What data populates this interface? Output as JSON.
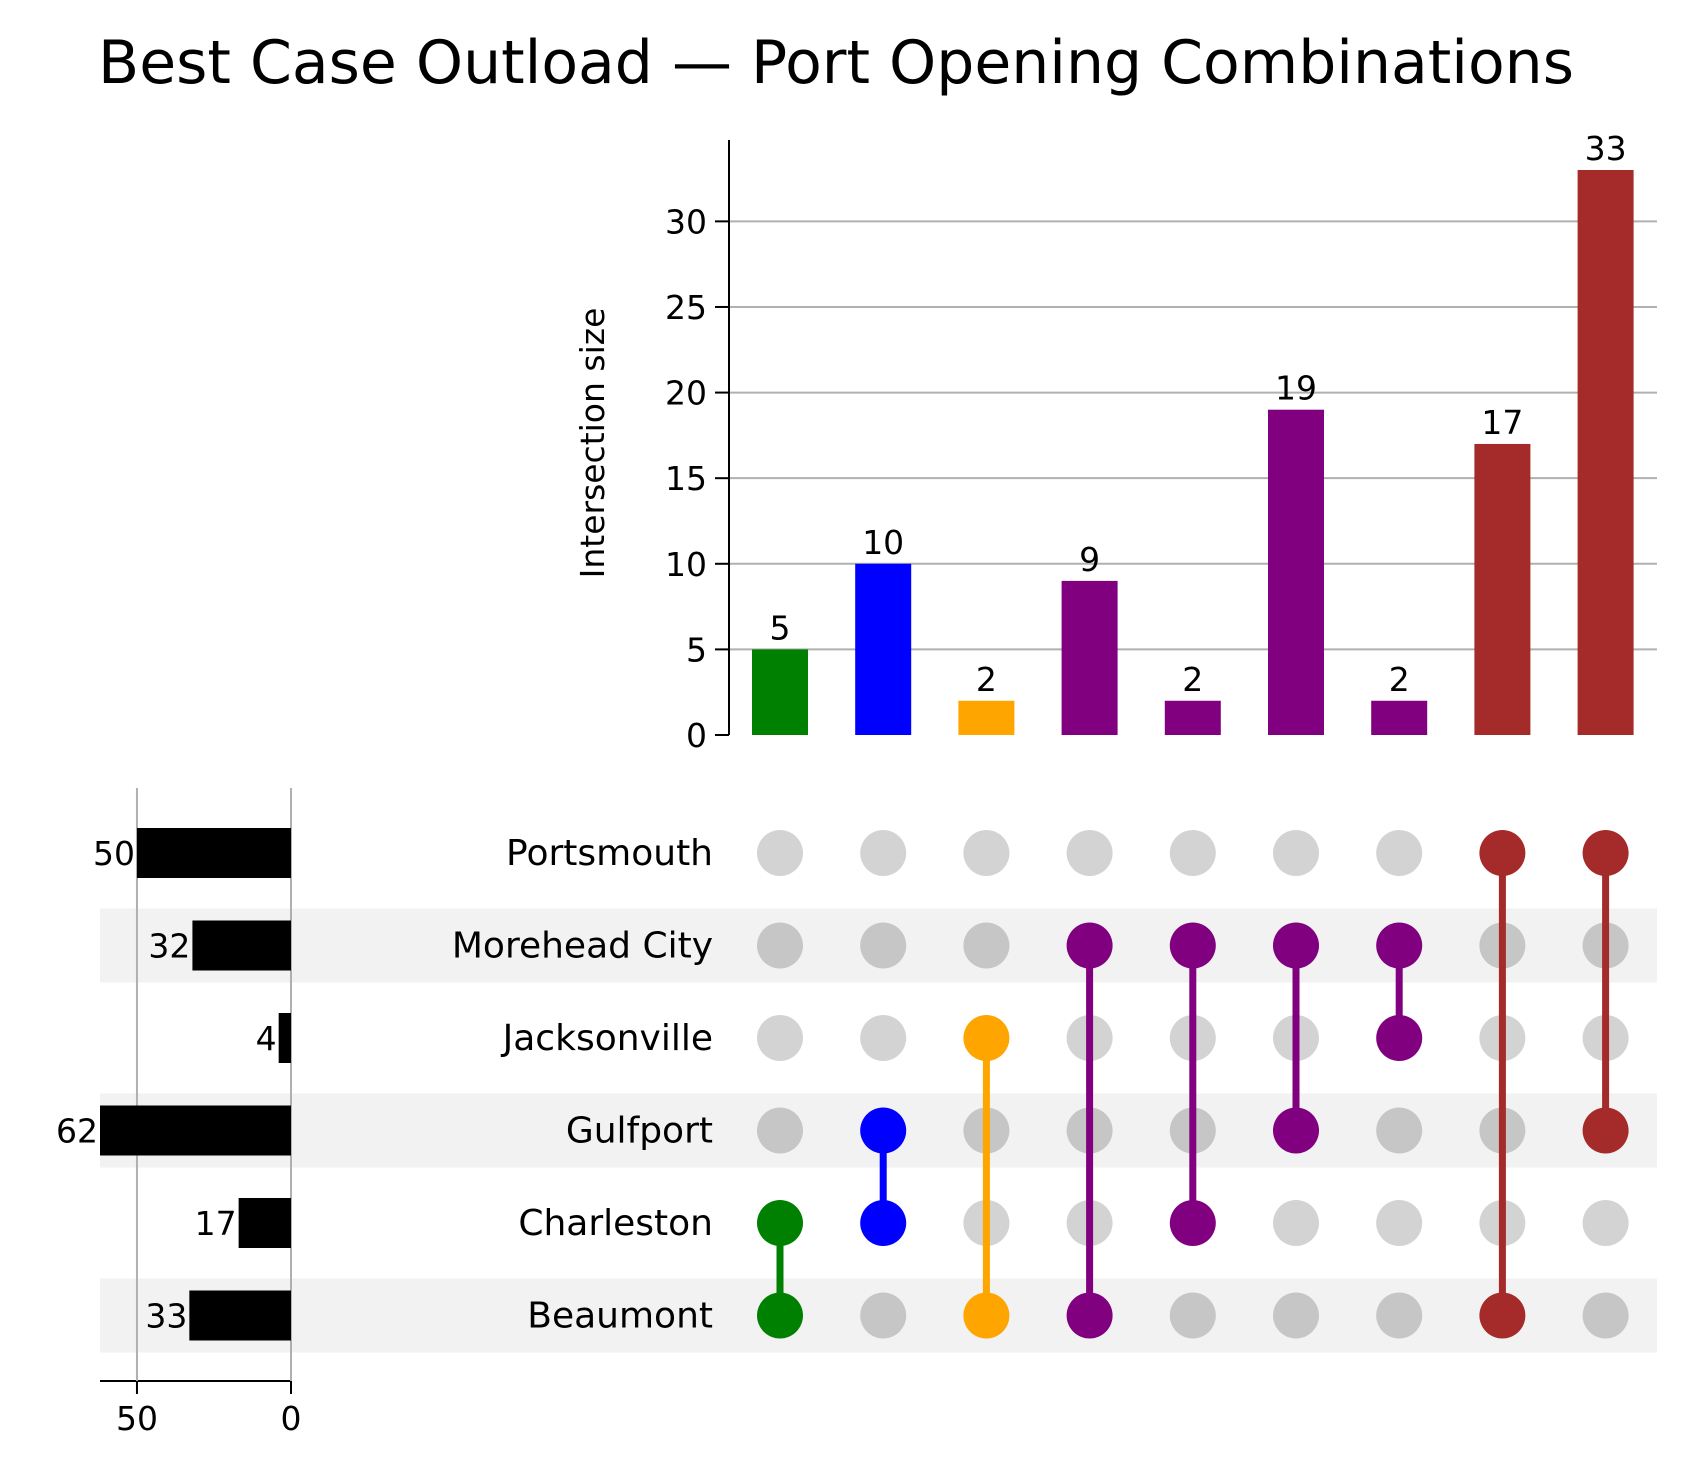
{
  "chart_data": {
    "type": "bar",
    "title": "Best Case Outload — Port Opening Combinations",
    "ylabel": "Intersection size",
    "ylim": [
      0,
      34.6
    ],
    "yticks": [
      0,
      5,
      10,
      15,
      20,
      25,
      30
    ],
    "grid": true,
    "sets": [
      "Portsmouth",
      "Morehead City",
      "Jacksonville",
      "Gulfport",
      "Charleston",
      "Beaumont"
    ],
    "set_sizes": [
      50,
      32,
      4,
      62,
      17,
      33
    ],
    "set_size_ticks": [
      50,
      0
    ],
    "set_size_xlim": [
      0,
      62
    ],
    "intersections": [
      {
        "members": [
          "Charleston",
          "Beaumont"
        ],
        "size": 5,
        "color": "#008000"
      },
      {
        "members": [
          "Gulfport",
          "Charleston"
        ],
        "size": 10,
        "color": "#0000ff"
      },
      {
        "members": [
          "Jacksonville",
          "Beaumont"
        ],
        "size": 2,
        "color": "#ffa500"
      },
      {
        "members": [
          "Morehead City",
          "Beaumont"
        ],
        "size": 9,
        "color": "#800080"
      },
      {
        "members": [
          "Morehead City",
          "Charleston"
        ],
        "size": 2,
        "color": "#800080"
      },
      {
        "members": [
          "Morehead City",
          "Gulfport"
        ],
        "size": 19,
        "color": "#800080"
      },
      {
        "members": [
          "Morehead City",
          "Jacksonville"
        ],
        "size": 2,
        "color": "#800080"
      },
      {
        "members": [
          "Portsmouth",
          "Beaumont"
        ],
        "size": 17,
        "color": "#a52a2a"
      },
      {
        "members": [
          "Portsmouth",
          "Gulfport"
        ],
        "size": 33,
        "color": "#a52a2a"
      }
    ],
    "colors": {
      "inactive_dot": "#d3d3d3",
      "inactive_dot_shaded": "#c6c6c6",
      "row_shade": "#f2f2f2",
      "totals_bar": "#000000",
      "grid": "#b0b0b0"
    }
  }
}
